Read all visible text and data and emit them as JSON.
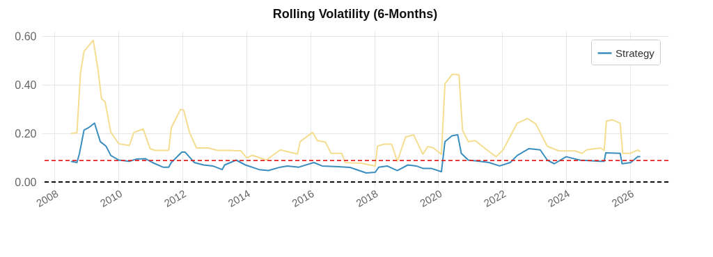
{
  "chart_data": {
    "type": "line",
    "title": "Rolling Volatility (6-Months)",
    "xlim": [
      2007.6,
      2027.2
    ],
    "xticks": [
      2008,
      2010,
      2012,
      2014,
      2016,
      2018,
      2020,
      2022,
      2024,
      2026
    ],
    "ylim": [
      -0.02,
      0.62
    ],
    "yticks": [
      {
        "value": 0,
        "label": "0.00"
      },
      {
        "value": 0.2,
        "label": "0.20"
      },
      {
        "value": 0.4,
        "label": "0.40"
      },
      {
        "value": 0.6,
        "label": "0.60"
      }
    ],
    "grid": true,
    "legend": "top right",
    "line_style": "solid",
    "marker": "none",
    "ref_lines": [
      {
        "axis": "y",
        "value": 0.088,
        "color": "#e32020",
        "line_style": "dashed"
      },
      {
        "axis": "y",
        "value": 0,
        "color": "#111111",
        "line_style": "dashed"
      }
    ],
    "series": [
      {
        "name": "Strategy",
        "color": "#3a8dbf",
        "x": [
          2008.51,
          2008.7,
          2008.78,
          2008.92,
          2009.06,
          2009.25,
          2009.43,
          2009.61,
          2009.76,
          2010.01,
          2010.34,
          2010.55,
          2010.84,
          2011.06,
          2011.39,
          2011.57,
          2011.65,
          2011.98,
          2012.08,
          2012.37,
          2012.66,
          2012.95,
          2013.24,
          2013.32,
          2013.68,
          2013.97,
          2014.4,
          2014.69,
          2015.06,
          2015.28,
          2015.64,
          2016.11,
          2016.37,
          2016.88,
          2017.24,
          2017.75,
          2018.03,
          2018.14,
          2018.4,
          2018.72,
          2019.05,
          2019.31,
          2019.52,
          2019.78,
          2020.1,
          2020.21,
          2020.43,
          2020.61,
          2020.72,
          2020.94,
          2021.3,
          2021.59,
          2021.92,
          2022.25,
          2022.47,
          2022.83,
          2023.19,
          2023.41,
          2023.63,
          2024.0,
          2024.43,
          2025.08,
          2025.19,
          2025.24,
          2025.69,
          2025.75,
          2026.02,
          2026.24,
          2026.32
        ],
        "values": [
          0.085,
          0.08,
          0.118,
          0.213,
          0.223,
          0.242,
          0.166,
          0.147,
          0.109,
          0.09,
          0.085,
          0.094,
          0.096,
          0.08,
          0.061,
          0.061,
          0.08,
          0.123,
          0.123,
          0.08,
          0.07,
          0.066,
          0.051,
          0.07,
          0.09,
          0.07,
          0.051,
          0.047,
          0.061,
          0.066,
          0.061,
          0.08,
          0.066,
          0.063,
          0.06,
          0.037,
          0.04,
          0.061,
          0.066,
          0.047,
          0.07,
          0.066,
          0.056,
          0.056,
          0.042,
          0.166,
          0.19,
          0.194,
          0.118,
          0.09,
          0.085,
          0.08,
          0.066,
          0.08,
          0.109,
          0.137,
          0.132,
          0.09,
          0.075,
          0.104,
          0.09,
          0.085,
          0.085,
          0.12,
          0.118,
          0.075,
          0.08,
          0.104,
          0.104
        ]
      },
      {
        "color": "#f5dd90",
        "x": [
          2008.51,
          2008.7,
          2008.81,
          2008.92,
          2009.21,
          2009.36,
          2009.47,
          2009.58,
          2009.76,
          2010.01,
          2010.34,
          2010.48,
          2010.77,
          2010.99,
          2011.14,
          2011.57,
          2011.65,
          2011.94,
          2012.04,
          2012.22,
          2012.44,
          2012.81,
          2013.1,
          2013.46,
          2013.83,
          2014.01,
          2014.19,
          2014.62,
          2015.06,
          2015.28,
          2015.6,
          2015.68,
          2016.07,
          2016.22,
          2016.47,
          2016.65,
          2016.98,
          2017.09,
          2017.6,
          2018.03,
          2018.1,
          2018.32,
          2018.54,
          2018.72,
          2018.98,
          2019.23,
          2019.52,
          2019.67,
          2019.85,
          2020.1,
          2020.21,
          2020.43,
          2020.57,
          2020.65,
          2020.76,
          2020.94,
          2021.16,
          2021.52,
          2021.81,
          2022.03,
          2022.47,
          2022.79,
          2023.05,
          2023.41,
          2023.77,
          2024.28,
          2024.5,
          2024.64,
          2025.08,
          2025.19,
          2025.26,
          2025.44,
          2025.69,
          2025.77,
          2026.02,
          2026.24,
          2026.32
        ],
        "values": [
          0.199,
          0.203,
          0.447,
          0.537,
          0.583,
          0.461,
          0.342,
          0.33,
          0.204,
          0.157,
          0.15,
          0.204,
          0.218,
          0.137,
          0.13,
          0.13,
          0.223,
          0.299,
          0.295,
          0.204,
          0.14,
          0.14,
          0.13,
          0.13,
          0.128,
          0.099,
          0.11,
          0.09,
          0.132,
          0.125,
          0.115,
          0.166,
          0.204,
          0.17,
          0.164,
          0.118,
          0.118,
          0.08,
          0.077,
          0.066,
          0.147,
          0.156,
          0.156,
          0.085,
          0.185,
          0.194,
          0.114,
          0.146,
          0.14,
          0.114,
          0.404,
          0.442,
          0.442,
          0.44,
          0.213,
          0.166,
          0.17,
          0.132,
          0.104,
          0.132,
          0.242,
          0.261,
          0.239,
          0.147,
          0.128,
          0.128,
          0.118,
          0.132,
          0.14,
          0.13,
          0.251,
          0.256,
          0.242,
          0.118,
          0.118,
          0.132,
          0.125
        ]
      }
    ]
  }
}
